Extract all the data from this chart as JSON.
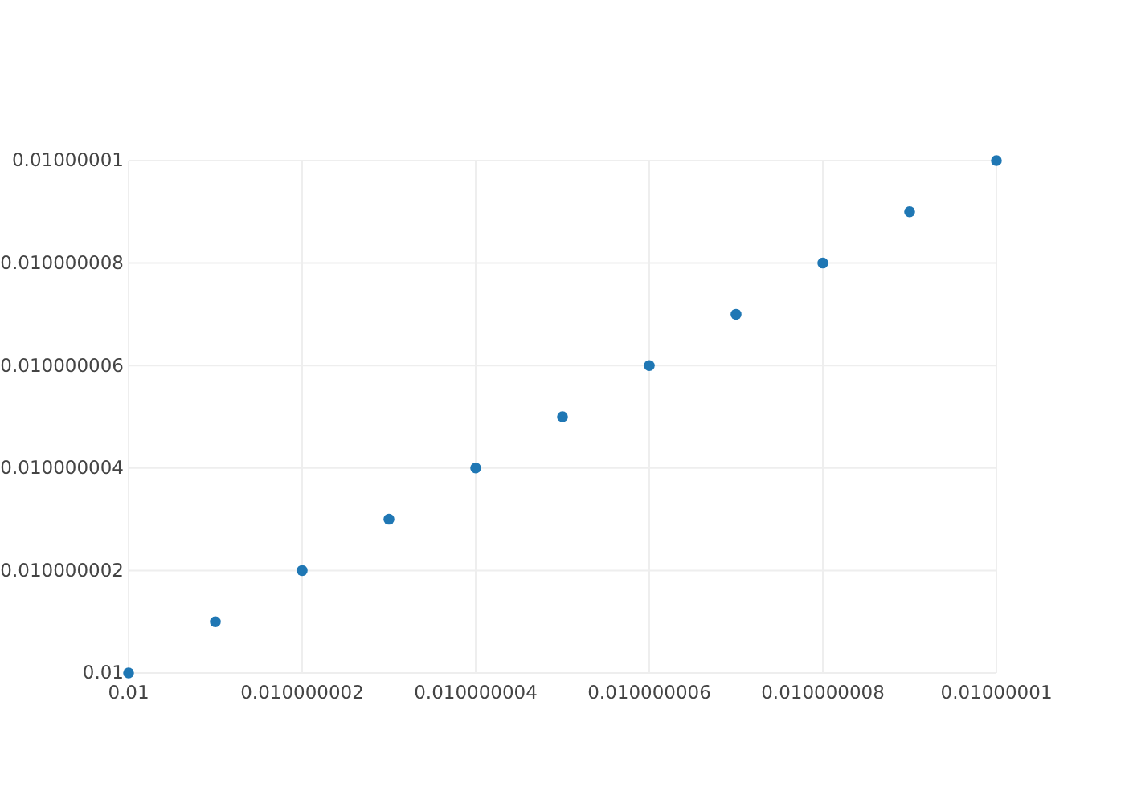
{
  "chart_data": {
    "type": "scatter",
    "x": [
      0.01,
      0.010000001,
      0.010000002,
      0.010000003,
      0.010000004,
      0.010000005,
      0.010000006,
      0.010000007,
      0.010000008,
      0.010000009,
      0.01000001
    ],
    "series": [
      {
        "color": "#1f77b4",
        "values": [
          0.01,
          0.010000001,
          0.010000002,
          0.010000003,
          0.010000004,
          0.010000005,
          0.010000006,
          0.010000007,
          0.010000008,
          0.010000009,
          0.01000001
        ]
      }
    ],
    "xlim": [
      0.01,
      0.01000001
    ],
    "ylim": [
      0.01,
      0.01000001
    ],
    "xticks": [
      0.01,
      0.010000002,
      0.010000004,
      0.010000006,
      0.010000008,
      0.01000001
    ],
    "yticks": [
      0.01,
      0.010000002,
      0.010000004,
      0.010000006,
      0.010000008,
      0.01000001
    ],
    "grid": true,
    "marker": "circle"
  }
}
